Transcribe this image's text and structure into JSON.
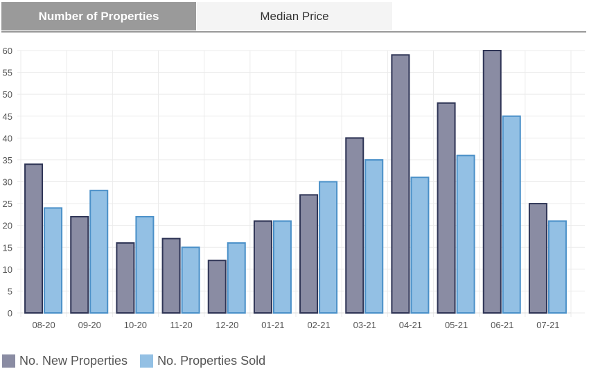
{
  "tabs": [
    {
      "label": "Number of Properties",
      "active": true
    },
    {
      "label": "Median Price",
      "active": false
    }
  ],
  "chart_data": {
    "type": "bar",
    "categories": [
      "08-20",
      "09-20",
      "10-20",
      "11-20",
      "12-20",
      "01-21",
      "02-21",
      "03-21",
      "04-21",
      "05-21",
      "06-21",
      "07-21"
    ],
    "series": [
      {
        "name": "No. New Properties",
        "values": [
          34,
          22,
          16,
          17,
          12,
          21,
          27,
          40,
          59,
          48,
          60,
          25
        ],
        "fill": "#8a8ca3",
        "stroke": "#2e3455"
      },
      {
        "name": "No. Properties Sold",
        "values": [
          24,
          28,
          22,
          15,
          16,
          21,
          30,
          35,
          31,
          36,
          45,
          21
        ],
        "fill": "#93c0e4",
        "stroke": "#4a90c8"
      }
    ],
    "ylim": [
      0,
      60
    ],
    "yticks": [
      0,
      5,
      10,
      15,
      20,
      25,
      30,
      35,
      40,
      45,
      50,
      55,
      60
    ],
    "grid": true,
    "legend": "bottom-left"
  }
}
